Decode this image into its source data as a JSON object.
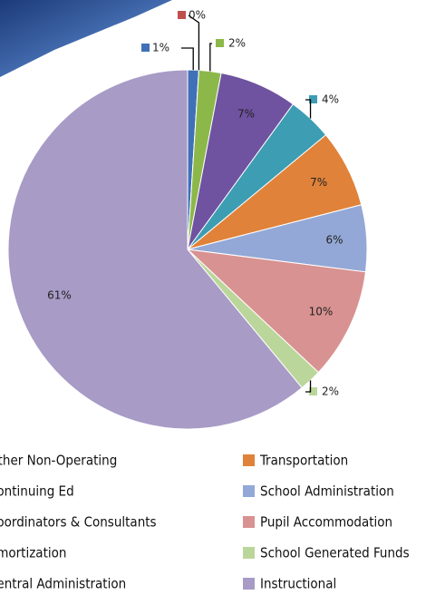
{
  "chart_data": {
    "type": "pie",
    "categories": [
      "Other Non-Operating",
      "Continuing Ed",
      "Coordinators & Consultants",
      "Amortization",
      "Central Administration",
      "Transportation",
      "School Administration",
      "Pupil Accommodation",
      "School Generated Funds",
      "Instructional"
    ],
    "values": [
      1,
      0,
      2,
      7,
      4,
      7,
      6,
      10,
      2,
      61
    ],
    "value_labels": [
      "1%",
      "0%",
      "2%",
      "7%",
      "4%",
      "7%",
      "6%",
      "10%",
      "2%",
      "61%"
    ],
    "colors": [
      "#4070b8",
      "#c0504d",
      "#8cb84a",
      "#6f52a0",
      "#3d9db3",
      "#e0823a",
      "#93a8d6",
      "#d89291",
      "#bbd69a",
      "#a89bc6"
    ],
    "legend": "bottom"
  }
}
